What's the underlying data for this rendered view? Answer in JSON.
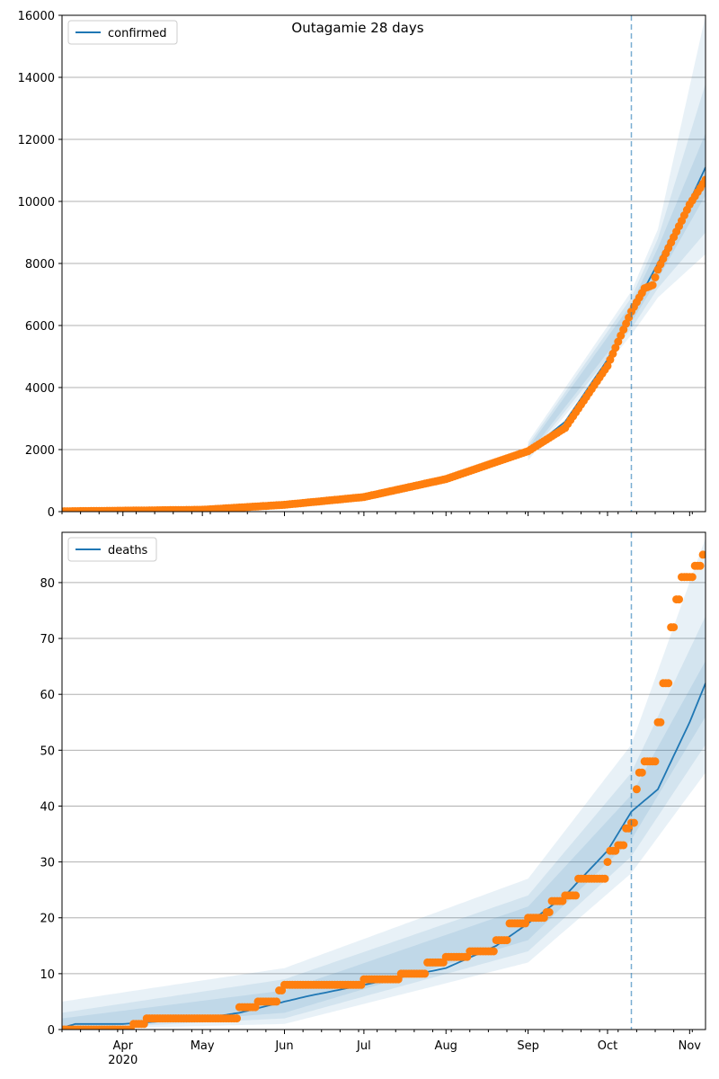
{
  "title": "Outagamie 28 days",
  "colors": {
    "model": "#1f77b4",
    "observed": "#ff7f0e",
    "band": "#1f77b4",
    "vline": "#1f77b4",
    "grid": "#b0b0b0"
  },
  "x_axis": {
    "type": "date",
    "range": [
      "2020-03-09",
      "2020-11-07"
    ],
    "month_labels": [
      {
        "date": "2020-04-01",
        "label": "Apr"
      },
      {
        "date": "2020-05-01",
        "label": "May"
      },
      {
        "date": "2020-06-01",
        "label": "Jun"
      },
      {
        "date": "2020-07-01",
        "label": "Jul"
      },
      {
        "date": "2020-08-01",
        "label": "Aug"
      },
      {
        "date": "2020-09-01",
        "label": "Sep"
      },
      {
        "date": "2020-10-01",
        "label": "Oct"
      },
      {
        "date": "2020-11-01",
        "label": "Nov"
      }
    ],
    "year_label": "2020",
    "forecast_start": "2020-10-10"
  },
  "chart_data": [
    {
      "type": "line",
      "legend": [
        "confirmed"
      ],
      "legend_position": "top-left",
      "grid": "y",
      "ylim": [
        0,
        16000
      ],
      "yticks": [
        0,
        2000,
        4000,
        6000,
        8000,
        10000,
        12000,
        14000,
        16000
      ],
      "series": [
        {
          "name": "confirmed",
          "kind": "model",
          "points": [
            [
              "2020-03-09",
              20
            ],
            [
              "2020-04-01",
              30
            ],
            [
              "2020-05-01",
              60
            ],
            [
              "2020-06-01",
              230
            ],
            [
              "2020-07-01",
              480
            ],
            [
              "2020-08-01",
              1070
            ],
            [
              "2020-09-01",
              1950
            ],
            [
              "2020-09-15",
              2900
            ],
            [
              "2020-10-01",
              4900
            ],
            [
              "2020-10-10",
              6400
            ],
            [
              "2020-10-20",
              8000
            ],
            [
              "2020-11-01",
              10000
            ],
            [
              "2020-11-07",
              11100
            ]
          ]
        },
        {
          "kind": "bands",
          "points": [
            [
              "2020-09-01",
              [
                1850,
                2050
              ],
              [
                1750,
                2150
              ],
              [
                1650,
                2250
              ]
            ],
            [
              "2020-10-10",
              [
                6100,
                6700
              ],
              [
                5900,
                6900
              ],
              [
                5700,
                7100
              ]
            ],
            [
              "2020-10-20",
              [
                7500,
                8500
              ],
              [
                7200,
                8800
              ],
              [
                6900,
                9100
              ]
            ],
            [
              "2020-11-07",
              [
                10200,
                12200
              ],
              [
                9000,
                13800
              ],
              [
                8300,
                16000
              ]
            ]
          ]
        },
        {
          "name": "observed",
          "kind": "observed",
          "points": [
            [
              "2020-03-09",
              10
            ],
            [
              "2020-04-01",
              30
            ],
            [
              "2020-05-01",
              60
            ],
            [
              "2020-06-01",
              220
            ],
            [
              "2020-07-01",
              470
            ],
            [
              "2020-08-01",
              1050
            ],
            [
              "2020-09-01",
              1950
            ],
            [
              "2020-09-15",
              2700
            ],
            [
              "2020-10-01",
              4700
            ],
            [
              "2020-10-10",
              6450
            ],
            [
              "2020-10-15",
              7200
            ],
            [
              "2020-10-18",
              7300
            ],
            [
              "2020-10-20",
              7800
            ],
            [
              "2020-11-01",
              9900
            ],
            [
              "2020-11-07",
              10700
            ]
          ]
        }
      ]
    },
    {
      "type": "line",
      "legend": [
        "deaths"
      ],
      "legend_position": "top-left",
      "grid": "y",
      "ylim": [
        0,
        89
      ],
      "yticks": [
        0,
        10,
        20,
        30,
        40,
        50,
        60,
        70,
        80
      ],
      "series": [
        {
          "name": "deaths",
          "kind": "model",
          "points": [
            [
              "2020-03-09",
              0.3
            ],
            [
              "2020-03-14",
              1
            ],
            [
              "2020-04-01",
              1
            ],
            [
              "2020-05-01",
              2
            ],
            [
              "2020-05-15",
              3
            ],
            [
              "2020-06-01",
              5
            ],
            [
              "2020-06-10",
              6
            ],
            [
              "2020-07-01",
              8
            ],
            [
              "2020-08-01",
              11
            ],
            [
              "2020-08-20",
              15
            ],
            [
              "2020-09-01",
              19
            ],
            [
              "2020-09-15",
              24
            ],
            [
              "2020-10-01",
              32
            ],
            [
              "2020-10-10",
              39
            ],
            [
              "2020-10-20",
              43
            ],
            [
              "2020-11-01",
              55
            ],
            [
              "2020-11-07",
              62
            ]
          ]
        },
        {
          "kind": "bands",
          "points": [
            [
              "2020-03-09",
              [
                0,
                2
              ],
              [
                0,
                3
              ],
              [
                0,
                5
              ]
            ],
            [
              "2020-06-01",
              [
                3,
                7
              ],
              [
                2,
                9
              ],
              [
                1,
                11
              ]
            ],
            [
              "2020-09-01",
              [
                16,
                22
              ],
              [
                14,
                24
              ],
              [
                12,
                27
              ]
            ],
            [
              "2020-10-10",
              [
                34,
                42
              ],
              [
                31,
                46
              ],
              [
                28,
                51
              ]
            ],
            [
              "2020-11-07",
              [
                56,
                66
              ],
              [
                51,
                74
              ],
              [
                46,
                88
              ]
            ]
          ]
        },
        {
          "name": "observed",
          "kind": "observed",
          "points": [
            [
              "2020-03-09",
              0
            ],
            [
              "2020-04-03",
              0
            ],
            [
              "2020-04-05",
              1
            ],
            [
              "2020-04-10",
              2
            ],
            [
              "2020-05-14",
              2
            ],
            [
              "2020-05-15",
              4
            ],
            [
              "2020-05-22",
              5
            ],
            [
              "2020-05-30",
              7
            ],
            [
              "2020-06-01",
              8
            ],
            [
              "2020-07-01",
              9
            ],
            [
              "2020-07-15",
              10
            ],
            [
              "2020-07-25",
              12
            ],
            [
              "2020-08-01",
              13
            ],
            [
              "2020-08-10",
              14
            ],
            [
              "2020-08-20",
              16
            ],
            [
              "2020-08-25",
              19
            ],
            [
              "2020-09-01",
              20
            ],
            [
              "2020-09-08",
              21
            ],
            [
              "2020-09-10",
              23
            ],
            [
              "2020-09-15",
              24
            ],
            [
              "2020-09-20",
              27
            ],
            [
              "2020-10-01",
              30
            ],
            [
              "2020-10-02",
              32
            ],
            [
              "2020-10-05",
              33
            ],
            [
              "2020-10-08",
              36
            ],
            [
              "2020-10-10",
              37
            ],
            [
              "2020-10-12",
              43
            ],
            [
              "2020-10-13",
              46
            ],
            [
              "2020-10-15",
              48
            ],
            [
              "2020-10-20",
              55
            ],
            [
              "2020-10-22",
              62
            ],
            [
              "2020-10-25",
              72
            ],
            [
              "2020-10-27",
              77
            ],
            [
              "2020-10-29",
              81
            ],
            [
              "2020-11-03",
              83
            ],
            [
              "2020-11-06",
              85
            ]
          ]
        }
      ]
    }
  ]
}
